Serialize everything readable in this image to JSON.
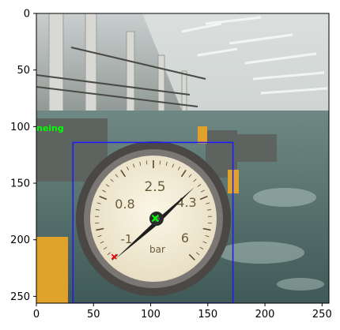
{
  "chart_data": {
    "type": "image",
    "x_ticks": [
      "0",
      "50",
      "100",
      "150",
      "200",
      "250"
    ],
    "y_ticks": [
      "0",
      "50",
      "100",
      "150",
      "200",
      "250"
    ],
    "xlim": [
      0,
      256
    ],
    "ylim": [
      256,
      0
    ],
    "gauge": {
      "scale_labels": [
        "2.5",
        "0.8",
        "4.3",
        "-1",
        "6",
        "bar"
      ],
      "unit": "bar"
    },
    "annotations": {
      "label_text": "neing",
      "label_color": "#00ff00",
      "bbox_color": "#1a1aff",
      "center_point": {
        "x": 104,
        "y": 181,
        "color": "#00ff00"
      },
      "tip_point": {
        "x": 68,
        "y": 215,
        "color": "#ff0000"
      },
      "box": {
        "x0": 32,
        "y0": 114,
        "x1": 172,
        "y1": 256
      }
    }
  }
}
